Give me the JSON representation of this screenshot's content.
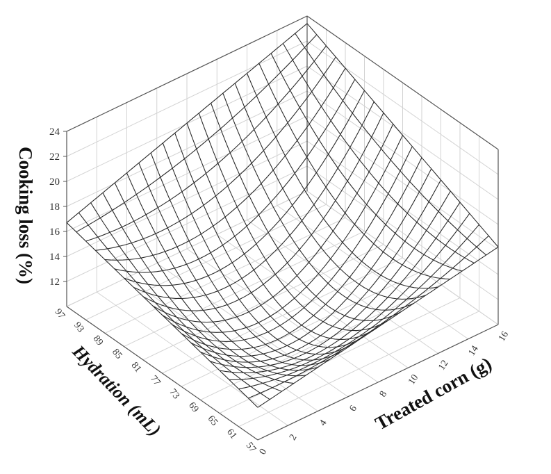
{
  "chart_data": {
    "type": "surface",
    "title": "",
    "xlabel": "Treated corn (g)",
    "ylabel": "Hydration (mL)",
    "zlabel": "Cooking loss (%)",
    "x_ticks": [
      "0",
      "2",
      "4",
      "6",
      "8",
      "10",
      "12",
      "14",
      "16"
    ],
    "y_ticks": [
      "57",
      "61",
      "65",
      "69",
      "73",
      "77",
      "81",
      "85",
      "89",
      "93",
      "97"
    ],
    "z_ticks": [
      "12",
      "14",
      "16",
      "18",
      "20",
      "22",
      "24"
    ],
    "xlim": [
      0,
      16
    ],
    "ylim": [
      57,
      97
    ],
    "zlim": [
      10,
      24
    ],
    "grid": true,
    "model": "quadratic response surface, minimum near x=8 g, y=77 mL",
    "surface_corners": [
      {
        "x": 0,
        "y": 97,
        "z": 16.7
      },
      {
        "x": 16,
        "y": 97,
        "z": 23.4
      },
      {
        "x": 16,
        "y": 57,
        "z": 16.2
      },
      {
        "x": 0,
        "y": 57,
        "z": 12.6
      }
    ],
    "surface_center": {
      "x": 8,
      "y": 77,
      "z": 10.6
    },
    "mesh_lines_x": 21,
    "mesh_lines_y": 21
  }
}
